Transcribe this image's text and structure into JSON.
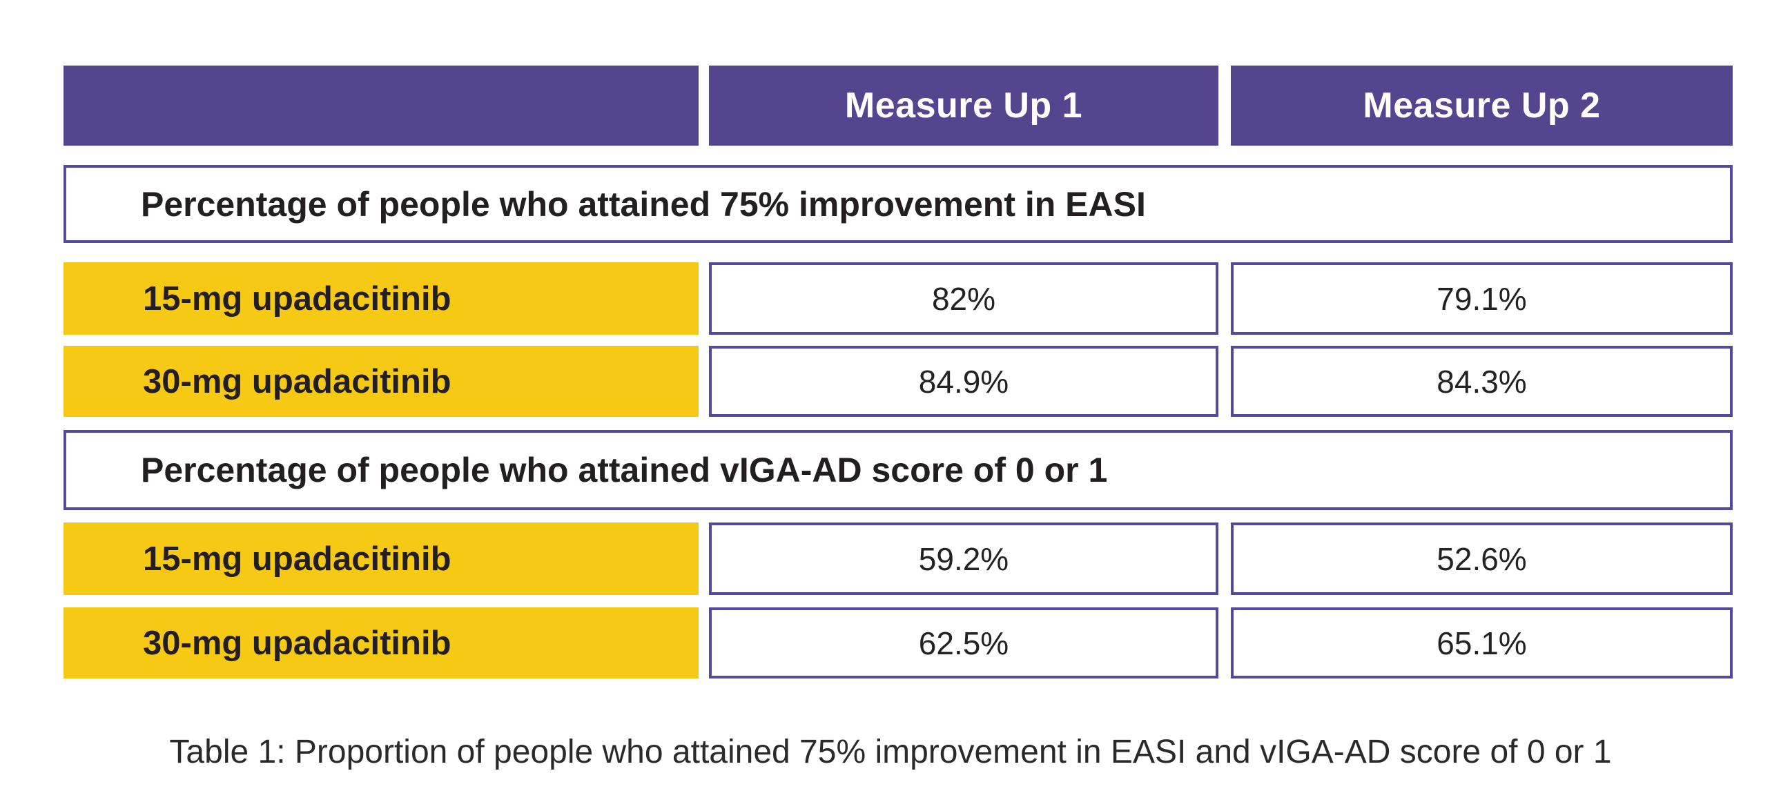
{
  "caption": "Table 1: Proportion of people who attained 75% improvement in EASI and vIGA-AD score of 0 or 1",
  "colors": {
    "header_purple": "#55458E",
    "border_purple": "#544A9D",
    "label_yellow": "#F6C914",
    "header_text": "#FFFFFF",
    "body_text": "#231F20"
  },
  "chart_data": {
    "type": "table",
    "title": "Table 1: Proportion of people who attained 75% improvement in EASI and vIGA-AD score of 0 or 1",
    "columns": [
      "",
      "Measure Up 1",
      "Measure Up 2"
    ],
    "sections": [
      {
        "header": "Percentage of people who attained 75% improvement in EASI",
        "rows": [
          [
            "15-mg upadacitinib",
            "82%",
            "79.1%"
          ],
          [
            "30-mg upadacitinib",
            "84.9%",
            "84.3%"
          ]
        ]
      },
      {
        "header": "Percentage of people who attained vIGA-AD score of 0 or 1",
        "rows": [
          [
            "15-mg upadacitinib",
            "59.2%",
            "52.6%"
          ],
          [
            "30-mg upadacitinib",
            "62.5%",
            "65.1%"
          ]
        ]
      }
    ]
  }
}
